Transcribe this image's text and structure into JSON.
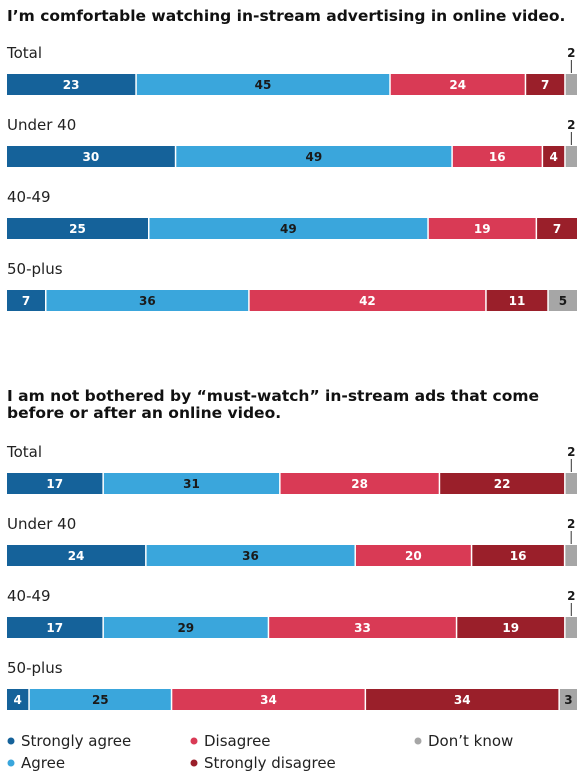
{
  "colors": {
    "strongly_agree": "#15629a",
    "agree": "#3aa6dc",
    "disagree": "#d93a55",
    "strongly_disagree": "#9a1f2a",
    "dont_know": "#a6a6a6"
  },
  "chart_data": [
    {
      "type": "bar",
      "stacked": true,
      "orientation": "horizontal",
      "title": "I’m comfortable watching in-stream advertising in online video.",
      "categories": [
        "Total",
        "Under 40",
        "40-49",
        "50-plus"
      ],
      "series": [
        {
          "name": "Strongly agree",
          "values": [
            23,
            30,
            25,
            7
          ]
        },
        {
          "name": "Agree",
          "values": [
            45,
            49,
            49,
            36
          ]
        },
        {
          "name": "Disagree",
          "values": [
            24,
            16,
            19,
            42
          ]
        },
        {
          "name": "Strongly disagree",
          "values": [
            7,
            4,
            7,
            11
          ]
        },
        {
          "name": "Don’t know",
          "values": [
            2,
            2,
            0,
            5
          ]
        }
      ]
    },
    {
      "type": "bar",
      "stacked": true,
      "orientation": "horizontal",
      "title": "I am not bothered by “must-watch” in-stream ads that come before or after an online video.",
      "categories": [
        "Total",
        "Under 40",
        "40-49",
        "50-plus"
      ],
      "series": [
        {
          "name": "Strongly agree",
          "values": [
            17,
            24,
            17,
            4
          ]
        },
        {
          "name": "Agree",
          "values": [
            31,
            36,
            29,
            25
          ]
        },
        {
          "name": "Disagree",
          "values": [
            28,
            20,
            33,
            34
          ]
        },
        {
          "name": "Strongly disagree",
          "values": [
            22,
            16,
            19,
            34
          ]
        },
        {
          "name": "Don’t know",
          "values": [
            2,
            2,
            2,
            3
          ]
        }
      ]
    }
  ],
  "legend": [
    {
      "label": "Strongly agree",
      "color_key": "strongly_agree"
    },
    {
      "label": "Disagree",
      "color_key": "disagree"
    },
    {
      "label": "Don’t know",
      "color_key": "dont_know"
    },
    {
      "label": "Agree",
      "color_key": "agree"
    },
    {
      "label": "Strongly disagree",
      "color_key": "strongly_disagree"
    }
  ]
}
